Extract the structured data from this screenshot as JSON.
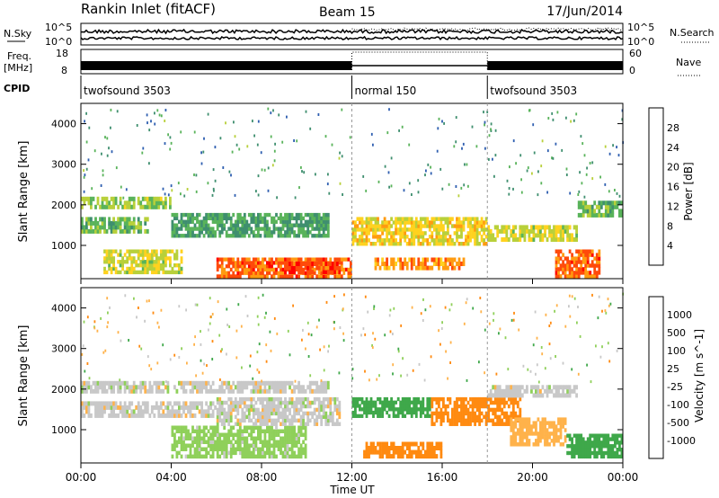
{
  "header": {
    "title": "Rankin Inlet (fitACF)",
    "beam": "Beam 15",
    "date": "17/Jun/2014"
  },
  "summary_panels": {
    "nsky_label": "N.Sky",
    "nsky_ticks": [
      "10^5",
      "10^0"
    ],
    "nsearch_label": "N.Search",
    "nsearch_ticks": [
      "10^5",
      "10^0"
    ],
    "freq_label_line1": "Freq.",
    "freq_label_line2": "[MHz]",
    "freq_ticks": [
      "18",
      "8"
    ],
    "nave_label": "Nave",
    "nave_ticks": [
      "60",
      "0"
    ],
    "cpid_label": "CPID"
  },
  "cpid_segments": [
    {
      "label": "twofsound 3503",
      "start_hour": 0,
      "end_hour": 12
    },
    {
      "label": "normal 150",
      "start_hour": 12,
      "end_hour": 18
    },
    {
      "label": "twofsound 3503",
      "start_hour": 18,
      "end_hour": 24
    }
  ],
  "x_axis": {
    "label": "Time UT",
    "ticks": [
      "00:00",
      "04:00",
      "08:00",
      "12:00",
      "16:00",
      "20:00",
      "00:00"
    ],
    "range_hours": [
      0,
      24
    ]
  },
  "colors": {
    "power_scale": [
      "#0000ff",
      "#2f5fb0",
      "#3f8f6f",
      "#59b35a",
      "#b8d03a",
      "#ffd21f",
      "#ff9b10",
      "#ff4a0a",
      "#ff0000"
    ],
    "velocity_scale": [
      "#ff0000",
      "#ff5a0a",
      "#ff8a10",
      "#ffb24a",
      "#c8c8c8",
      "#8fd05a",
      "#3fa84a",
      "#2e6fbf",
      "#2a3fbf"
    ]
  },
  "chart_data": [
    {
      "type": "heatmap",
      "name": "power",
      "ylabel": "Slant Range [km]",
      "yticks": [
        "1000",
        "2000",
        "3000",
        "4000"
      ],
      "ylim": [
        180,
        4500
      ],
      "xlim": [
        0,
        24
      ],
      "colorbar_label": "Power [dB]",
      "colorbar_ticks": [
        "4",
        "8",
        "12",
        "16",
        "20",
        "24",
        "28"
      ],
      "colorbar_range": [
        0,
        30
      ],
      "bands": [
        {
          "t0": 0.0,
          "t1": 4.0,
          "r0": 1900,
          "r1": 2200,
          "v": 14
        },
        {
          "t0": 0.0,
          "t1": 3.0,
          "r0": 1300,
          "r1": 1700,
          "v": 12
        },
        {
          "t0": 1.0,
          "t1": 4.5,
          "r0": 300,
          "r1": 900,
          "v": 16
        },
        {
          "t0": 4.0,
          "t1": 11.0,
          "r0": 1200,
          "r1": 1800,
          "v": 10
        },
        {
          "t0": 6.0,
          "t1": 12.0,
          "r0": 200,
          "r1": 700,
          "v": 24
        },
        {
          "t0": 9.0,
          "t1": 11.5,
          "r0": 300,
          "r1": 600,
          "v": 26
        },
        {
          "t0": 12.0,
          "t1": 18.0,
          "r0": 1000,
          "r1": 1700,
          "v": 18
        },
        {
          "t0": 13.0,
          "t1": 17.0,
          "r0": 400,
          "r1": 700,
          "v": 22
        },
        {
          "t0": 18.0,
          "t1": 22.0,
          "r0": 1100,
          "r1": 1500,
          "v": 16
        },
        {
          "t0": 21.0,
          "t1": 23.0,
          "r0": 200,
          "r1": 900,
          "v": 24
        },
        {
          "t0": 22.0,
          "t1": 24.0,
          "r0": 1700,
          "r1": 2100,
          "v": 12
        }
      ]
    },
    {
      "type": "heatmap",
      "name": "velocity",
      "ylabel": "Slant Range [km]",
      "yticks": [
        "1000",
        "2000",
        "3000",
        "4000"
      ],
      "ylim": [
        180,
        4500
      ],
      "xlim": [
        0,
        24
      ],
      "colorbar_label": "Velocity [m s^-1]",
      "colorbar_ticks": [
        "1000",
        "500",
        "100",
        "25",
        "-25",
        "-100",
        "-500",
        "-1000"
      ],
      "bands": [
        {
          "t0": 0.0,
          "t1": 11.0,
          "r0": 1900,
          "r1": 2200,
          "v": 0
        },
        {
          "t0": 0.0,
          "t1": 6.0,
          "r0": 1300,
          "r1": 1700,
          "v": 0
        },
        {
          "t0": 4.0,
          "t1": 10.0,
          "r0": 300,
          "r1": 1100,
          "v": 50
        },
        {
          "t0": 6.0,
          "t1": 11.5,
          "r0": 1100,
          "r1": 1800,
          "v": 0
        },
        {
          "t0": 12.0,
          "t1": 15.5,
          "r0": 1300,
          "r1": 1800,
          "v": 200
        },
        {
          "t0": 12.5,
          "t1": 16.0,
          "r0": 300,
          "r1": 700,
          "v": -300
        },
        {
          "t0": 15.5,
          "t1": 19.5,
          "r0": 1100,
          "r1": 1800,
          "v": -300
        },
        {
          "t0": 18.0,
          "t1": 22.0,
          "r0": 1800,
          "r1": 2100,
          "v": 0
        },
        {
          "t0": 19.0,
          "t1": 21.5,
          "r0": 600,
          "r1": 1300,
          "v": -60
        },
        {
          "t0": 21.5,
          "t1": 24.0,
          "r0": 300,
          "r1": 900,
          "v": 150
        }
      ]
    }
  ]
}
